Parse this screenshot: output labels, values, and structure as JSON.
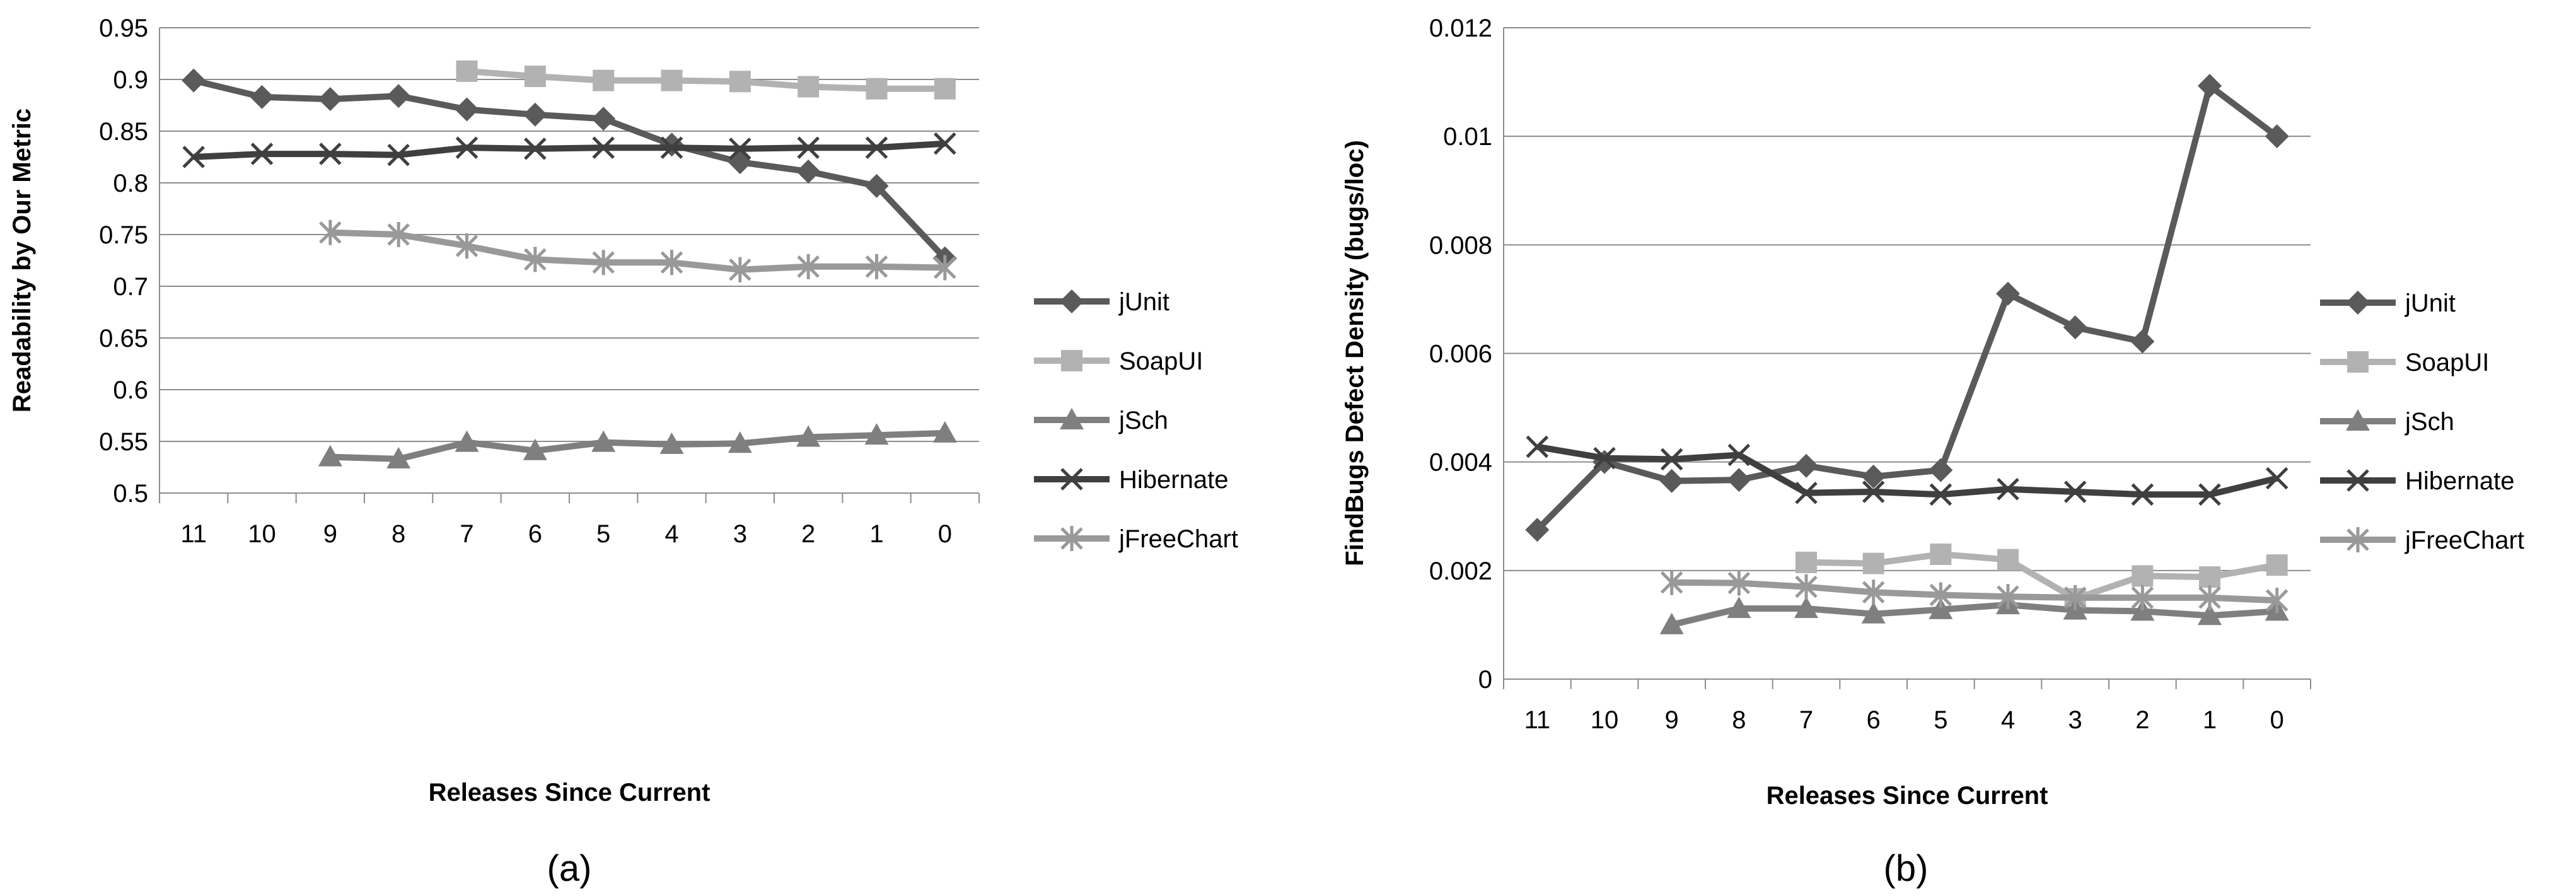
{
  "chart_data": [
    {
      "type": "line",
      "caption": "(a)",
      "xlabel": "Releases Since Current",
      "ylabel": "Readability by Our Metric",
      "categories": [
        "11",
        "10",
        "9",
        "8",
        "7",
        "6",
        "5",
        "4",
        "3",
        "2",
        "1",
        "0"
      ],
      "ylim": [
        0.5,
        0.95
      ],
      "yticks": [
        "0.5",
        "0.55",
        "0.6",
        "0.65",
        "0.7",
        "0.75",
        "0.8",
        "0.85",
        "0.9",
        "0.95"
      ],
      "grid": true,
      "legend": "right",
      "series": [
        {
          "name": "jUnit",
          "color": "#5a5a5a",
          "marker": "diamond",
          "values": [
            0.899,
            0.883,
            0.881,
            0.884,
            0.871,
            0.866,
            0.862,
            0.837,
            0.82,
            0.811,
            0.797,
            0.727
          ]
        },
        {
          "name": "SoapUI",
          "color": "#b2b2b2",
          "marker": "square",
          "values": [
            null,
            null,
            null,
            null,
            0.908,
            0.903,
            0.899,
            0.899,
            0.898,
            0.893,
            0.891,
            0.891
          ]
        },
        {
          "name": "jSch",
          "color": "#7f7f7f",
          "marker": "triangle",
          "values": [
            null,
            null,
            0.535,
            0.533,
            0.549,
            0.541,
            0.549,
            0.547,
            0.548,
            0.554,
            0.556,
            0.558
          ]
        },
        {
          "name": "Hibernate",
          "color": "#3f3f3f",
          "marker": "x",
          "values": [
            0.825,
            0.828,
            0.828,
            0.827,
            0.834,
            0.833,
            0.834,
            0.834,
            0.833,
            0.834,
            0.834,
            0.838
          ]
        },
        {
          "name": "jFreeChart",
          "color": "#999999",
          "marker": "star",
          "values": [
            null,
            null,
            0.752,
            0.75,
            0.739,
            0.726,
            0.723,
            0.723,
            0.716,
            0.719,
            0.719,
            0.718
          ]
        }
      ]
    },
    {
      "type": "line",
      "caption": "(b)",
      "xlabel": "Releases Since Current",
      "ylabel": "FindBugs Defect Density (bugs/loc)",
      "categories": [
        "11",
        "10",
        "9",
        "8",
        "7",
        "6",
        "5",
        "4",
        "3",
        "2",
        "1",
        "0"
      ],
      "ylim": [
        0,
        0.012
      ],
      "yticks": [
        "0",
        "0.002",
        "0.004",
        "0.006",
        "0.008",
        "0.01",
        "0.012"
      ],
      "grid": true,
      "legend": "right",
      "series": [
        {
          "name": "jUnit",
          "color": "#5a5a5a",
          "marker": "diamond",
          "values": [
            0.00275,
            0.004,
            0.00365,
            0.00367,
            0.00393,
            0.00373,
            0.00385,
            0.0071,
            0.00648,
            0.00622,
            0.01093,
            0.01
          ]
        },
        {
          "name": "SoapUI",
          "color": "#b2b2b2",
          "marker": "square",
          "values": [
            null,
            null,
            null,
            null,
            0.00215,
            0.00213,
            0.0023,
            0.0022,
            0.00148,
            0.0019,
            0.00188,
            0.0021
          ]
        },
        {
          "name": "jSch",
          "color": "#7f7f7f",
          "marker": "triangle",
          "values": [
            null,
            null,
            0.001,
            0.0013,
            0.0013,
            0.0012,
            0.00128,
            0.00137,
            0.00127,
            0.00125,
            0.00117,
            0.00125
          ]
        },
        {
          "name": "Hibernate",
          "color": "#3f3f3f",
          "marker": "x",
          "values": [
            0.00428,
            0.00407,
            0.00405,
            0.00413,
            0.00343,
            0.00345,
            0.0034,
            0.0035,
            0.00345,
            0.0034,
            0.0034,
            0.0037
          ]
        },
        {
          "name": "jFreeChart",
          "color": "#999999",
          "marker": "star",
          "values": [
            null,
            null,
            0.00178,
            0.00177,
            0.0017,
            0.0016,
            0.00155,
            0.00152,
            0.0015,
            0.0015,
            0.0015,
            0.00145
          ]
        }
      ]
    }
  ]
}
